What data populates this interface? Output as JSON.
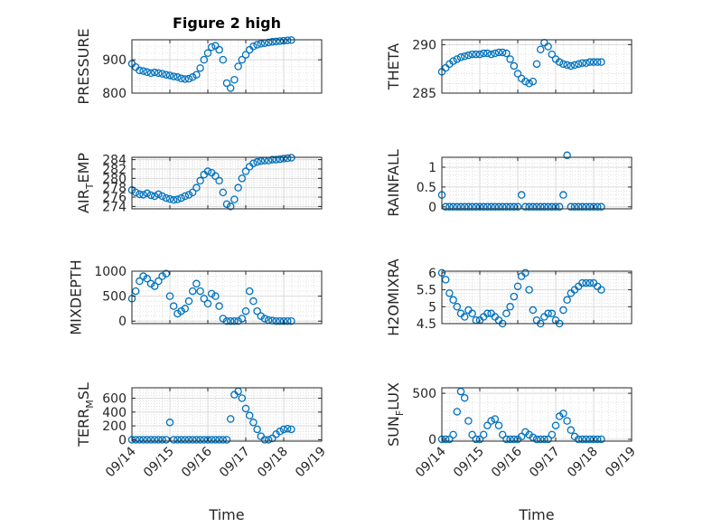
{
  "title": "Figure 2 high",
  "xlabel": "Time",
  "marker_color": "#0072BD",
  "chart_data": [
    {
      "type": "scatter",
      "ylabel": "PRESSURE",
      "ylim": [
        800,
        960
      ],
      "yticks": [
        800,
        900
      ],
      "ytick_labels": [
        "800",
        "900"
      ],
      "x": [
        14.0,
        14.1,
        14.2,
        14.3,
        14.4,
        14.5,
        14.6,
        14.7,
        14.8,
        14.9,
        15.0,
        15.1,
        15.2,
        15.3,
        15.4,
        15.5,
        15.6,
        15.7,
        15.8,
        15.9,
        16.0,
        16.1,
        16.2,
        16.3,
        16.4,
        16.5,
        16.6,
        16.7,
        16.8,
        16.9,
        17.0,
        17.1,
        17.2,
        17.3,
        17.4,
        17.5,
        17.6,
        17.7,
        17.8,
        17.9,
        18.0,
        18.1,
        18.2
      ],
      "y": [
        888,
        878,
        868,
        866,
        863,
        860,
        862,
        860,
        858,
        855,
        853,
        850,
        848,
        844,
        842,
        843,
        848,
        855,
        875,
        900,
        920,
        938,
        942,
        930,
        900,
        830,
        815,
        840,
        880,
        900,
        915,
        930,
        940,
        945,
        948,
        950,
        952,
        954,
        955,
        956,
        957,
        958,
        959
      ]
    },
    {
      "type": "scatter",
      "ylabel": "THETA",
      "ylim": [
        285,
        290.5
      ],
      "yticks": [
        285,
        290
      ],
      "ytick_labels": [
        "285",
        "290"
      ],
      "x": [
        14.0,
        14.1,
        14.2,
        14.3,
        14.4,
        14.5,
        14.6,
        14.7,
        14.8,
        14.9,
        15.0,
        15.1,
        15.2,
        15.3,
        15.4,
        15.5,
        15.6,
        15.7,
        15.8,
        15.9,
        16.0,
        16.1,
        16.2,
        16.3,
        16.4,
        16.5,
        16.6,
        16.7,
        16.8,
        16.9,
        17.0,
        17.1,
        17.2,
        17.3,
        17.4,
        17.5,
        17.6,
        17.7,
        17.8,
        17.9,
        18.0,
        18.1,
        18.2
      ],
      "y": [
        287.2,
        287.6,
        288.0,
        288.3,
        288.5,
        288.7,
        288.8,
        288.9,
        289.0,
        289.0,
        289.0,
        289.1,
        289.1,
        289.0,
        289.1,
        289.2,
        289.2,
        289.1,
        288.5,
        287.8,
        287.0,
        286.5,
        286.2,
        286.0,
        286.2,
        288.0,
        289.5,
        290.2,
        289.8,
        289.0,
        288.5,
        288.2,
        288.0,
        287.9,
        287.8,
        287.9,
        288.0,
        288.1,
        288.1,
        288.2,
        288.2,
        288.2,
        288.2
      ]
    },
    {
      "type": "scatter",
      "ylabel": "AIR_TEMP",
      "ylim": [
        273.5,
        284.5
      ],
      "yticks": [
        274,
        276,
        278,
        280,
        282,
        284
      ],
      "ytick_labels": [
        "274",
        "276",
        "278",
        "280",
        "282",
        "284"
      ],
      "x": [
        14.0,
        14.1,
        14.2,
        14.3,
        14.4,
        14.5,
        14.6,
        14.7,
        14.8,
        14.9,
        15.0,
        15.1,
        15.2,
        15.3,
        15.4,
        15.5,
        15.6,
        15.7,
        15.8,
        15.9,
        16.0,
        16.1,
        16.2,
        16.3,
        16.4,
        16.5,
        16.6,
        16.7,
        16.8,
        16.9,
        17.0,
        17.1,
        17.2,
        17.3,
        17.4,
        17.5,
        17.6,
        17.7,
        17.8,
        17.9,
        18.0,
        18.1,
        18.2
      ],
      "y": [
        277.5,
        277.0,
        276.6,
        276.5,
        276.8,
        276.4,
        276.2,
        276.6,
        276.2,
        275.8,
        275.6,
        275.4,
        275.5,
        275.8,
        276.2,
        276.5,
        277.0,
        278.0,
        279.5,
        280.8,
        281.5,
        281.2,
        280.5,
        279.5,
        277.0,
        274.5,
        274.0,
        275.5,
        278.0,
        280.0,
        281.5,
        282.5,
        283.2,
        283.5,
        283.7,
        283.8,
        283.8,
        284.0,
        284.0,
        284.1,
        284.2,
        284.3,
        284.4
      ]
    },
    {
      "type": "scatter",
      "ylabel": "RAINFALL",
      "ylim": [
        -0.05,
        1.25
      ],
      "yticks": [
        0,
        0.5,
        1
      ],
      "ytick_labels": [
        "0",
        "0.5",
        "1"
      ],
      "x": [
        14.0,
        14.1,
        14.2,
        14.3,
        14.4,
        14.5,
        14.6,
        14.7,
        14.8,
        14.9,
        15.0,
        15.1,
        15.2,
        15.3,
        15.4,
        15.5,
        15.6,
        15.7,
        15.8,
        15.9,
        16.0,
        16.1,
        16.2,
        16.3,
        16.4,
        16.5,
        16.6,
        16.7,
        16.8,
        16.9,
        17.0,
        17.1,
        17.2,
        17.3,
        17.4,
        17.5,
        17.6,
        17.7,
        17.8,
        17.9,
        18.0,
        18.1,
        18.2
      ],
      "y": [
        0.3,
        0,
        0,
        0,
        0,
        0,
        0,
        0,
        0,
        0,
        0,
        0,
        0,
        0,
        0,
        0,
        0,
        0,
        0,
        0,
        0,
        0.3,
        0,
        0,
        0,
        0,
        0,
        0,
        0,
        0,
        0,
        0,
        0.3,
        1.3,
        0,
        0,
        0,
        0,
        0,
        0,
        0,
        0,
        0
      ]
    },
    {
      "type": "scatter",
      "ylabel": "MIXDEPTH",
      "ylim": [
        -50,
        1000
      ],
      "yticks": [
        0,
        500,
        1000
      ],
      "ytick_labels": [
        "0",
        "500",
        "1000"
      ],
      "x": [
        14.0,
        14.1,
        14.2,
        14.3,
        14.4,
        14.5,
        14.6,
        14.7,
        14.8,
        14.9,
        15.0,
        15.1,
        15.2,
        15.3,
        15.4,
        15.5,
        15.6,
        15.7,
        15.8,
        15.9,
        16.0,
        16.1,
        16.2,
        16.3,
        16.4,
        16.5,
        16.6,
        16.7,
        16.8,
        16.9,
        17.0,
        17.1,
        17.2,
        17.3,
        17.4,
        17.5,
        17.6,
        17.7,
        17.8,
        17.9,
        18.0,
        18.1,
        18.2
      ],
      "y": [
        450,
        600,
        800,
        900,
        850,
        750,
        700,
        800,
        900,
        950,
        500,
        300,
        150,
        200,
        250,
        400,
        600,
        750,
        600,
        450,
        350,
        550,
        500,
        300,
        50,
        0,
        0,
        0,
        0,
        50,
        200,
        600,
        400,
        200,
        100,
        50,
        20,
        10,
        0,
        0,
        0,
        0,
        0
      ]
    },
    {
      "type": "scatter",
      "ylabel": "H2OMIXRA",
      "ylim": [
        4.5,
        6.05
      ],
      "yticks": [
        4.5,
        5,
        5.5,
        6
      ],
      "ytick_labels": [
        "4.5",
        "5",
        "5.5",
        "6"
      ],
      "x": [
        14.0,
        14.1,
        14.2,
        14.3,
        14.4,
        14.5,
        14.6,
        14.7,
        14.8,
        14.9,
        15.0,
        15.1,
        15.2,
        15.3,
        15.4,
        15.5,
        15.6,
        15.7,
        15.8,
        15.9,
        16.0,
        16.1,
        16.2,
        16.3,
        16.4,
        16.5,
        16.6,
        16.7,
        16.8,
        16.9,
        17.0,
        17.1,
        17.2,
        17.3,
        17.4,
        17.5,
        17.6,
        17.7,
        17.8,
        17.9,
        18.0,
        18.1,
        18.2
      ],
      "y": [
        6.0,
        5.8,
        5.4,
        5.2,
        5.0,
        4.8,
        4.7,
        4.9,
        4.8,
        4.6,
        4.6,
        4.7,
        4.8,
        4.8,
        4.7,
        4.6,
        4.5,
        4.8,
        5.0,
        5.3,
        5.6,
        5.9,
        6.0,
        5.5,
        4.9,
        4.6,
        4.5,
        4.7,
        4.8,
        4.8,
        4.6,
        4.5,
        4.9,
        5.2,
        5.4,
        5.5,
        5.6,
        5.7,
        5.7,
        5.7,
        5.7,
        5.6,
        5.5
      ]
    },
    {
      "type": "scatter",
      "ylabel": "TERR_MSL",
      "ylim": [
        -20,
        750
      ],
      "yticks": [
        0,
        200,
        400,
        600
      ],
      "ytick_labels": [
        "0",
        "200",
        "400",
        "600"
      ],
      "x": [
        14.0,
        14.1,
        14.2,
        14.3,
        14.4,
        14.5,
        14.6,
        14.7,
        14.8,
        14.9,
        15.0,
        15.1,
        15.2,
        15.3,
        15.4,
        15.5,
        15.6,
        15.7,
        15.8,
        15.9,
        16.0,
        16.1,
        16.2,
        16.3,
        16.4,
        16.5,
        16.6,
        16.7,
        16.8,
        16.9,
        17.0,
        17.1,
        17.2,
        17.3,
        17.4,
        17.5,
        17.6,
        17.7,
        17.8,
        17.9,
        18.0,
        18.1,
        18.2
      ],
      "y": [
        0,
        0,
        0,
        0,
        0,
        0,
        0,
        0,
        0,
        0,
        250,
        0,
        0,
        0,
        0,
        0,
        0,
        0,
        0,
        0,
        0,
        0,
        0,
        0,
        0,
        0,
        300,
        650,
        700,
        600,
        450,
        350,
        250,
        150,
        50,
        0,
        0,
        20,
        80,
        120,
        150,
        160,
        150
      ]
    },
    {
      "type": "scatter",
      "ylabel": "SUN_FLUX",
      "ylim": [
        -20,
        560
      ],
      "yticks": [
        0,
        500
      ],
      "ytick_labels": [
        "0",
        "500"
      ],
      "x": [
        14.0,
        14.1,
        14.2,
        14.3,
        14.4,
        14.5,
        14.6,
        14.7,
        14.8,
        14.9,
        15.0,
        15.1,
        15.2,
        15.3,
        15.4,
        15.5,
        15.6,
        15.7,
        15.8,
        15.9,
        16.0,
        16.1,
        16.2,
        16.3,
        16.4,
        16.5,
        16.6,
        16.7,
        16.8,
        16.9,
        17.0,
        17.1,
        17.2,
        17.3,
        17.4,
        17.5,
        17.6,
        17.7,
        17.8,
        17.9,
        18.0,
        18.1,
        18.2
      ],
      "y": [
        0,
        0,
        0,
        50,
        300,
        520,
        450,
        200,
        50,
        0,
        0,
        50,
        150,
        200,
        220,
        150,
        50,
        0,
        0,
        0,
        0,
        30,
        80,
        50,
        20,
        0,
        0,
        0,
        0,
        50,
        150,
        250,
        280,
        200,
        100,
        30,
        0,
        0,
        0,
        0,
        0,
        0,
        0
      ]
    }
  ],
  "xaxis": {
    "xlim": [
      14,
      19
    ],
    "ticks": [
      14,
      15,
      16,
      17,
      18,
      19
    ],
    "tick_labels": [
      "09/14",
      "09/15",
      "09/16",
      "09/17",
      "09/18",
      "09/19"
    ]
  }
}
